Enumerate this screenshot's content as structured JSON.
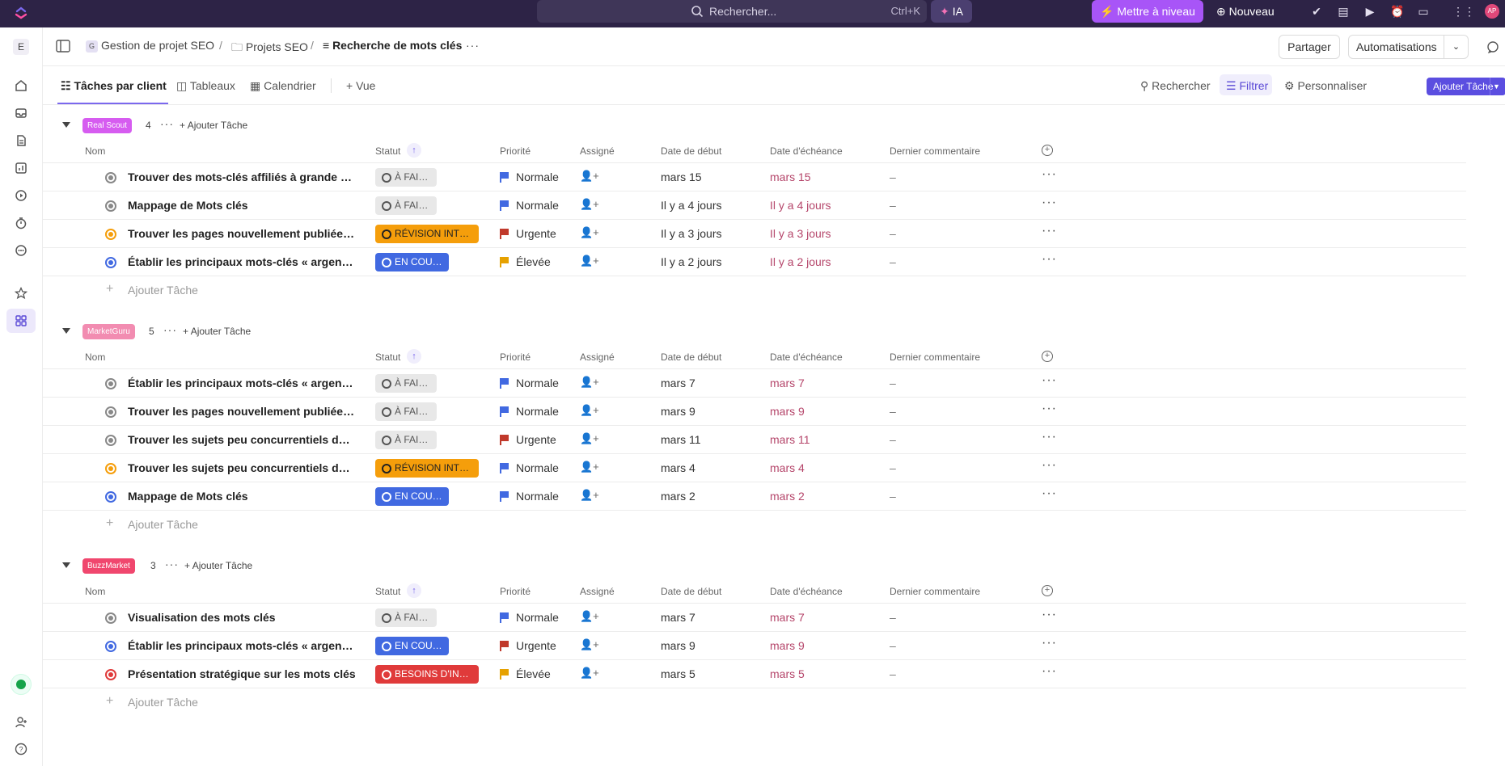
{
  "topbar": {
    "search_placeholder": "Rechercher...",
    "search_shortcut": "Ctrl+K",
    "ai_label": "IA",
    "upgrade_label": "Mettre à niveau",
    "new_label": "Nouveau",
    "avatar_initials": "AP"
  },
  "sidebar": {
    "workspace_initial": "E"
  },
  "breadcrumb": {
    "space_initial": "G",
    "space": "Gestion de projet SEO",
    "folder": "Projets SEO",
    "list": "Recherche de mots clés"
  },
  "header_actions": {
    "share": "Partager",
    "automations": "Automatisations"
  },
  "views": {
    "tabs": [
      "Tâches par client",
      "Tableaux",
      "Calendrier"
    ],
    "add_view": "+ Vue",
    "search": "Rechercher",
    "filter": "Filtrer",
    "customize": "Personnaliser",
    "add_task": "Ajouter Tâche"
  },
  "columns": {
    "name": "Nom",
    "status": "Statut",
    "priority": "Priorité",
    "assignee": "Assigné",
    "start": "Date de début",
    "due": "Date d'échéance",
    "comment": "Dernier commentaire"
  },
  "add_task_label": "Ajouter Tâche",
  "groups": [
    {
      "tag": "Real Scout",
      "color": "#d65cf0",
      "count": "4",
      "tasks": [
        {
          "name": "Trouver des mots-clés affiliés à grande échelle",
          "status": "À FAIRE",
          "status_type": "todo",
          "priority": "Normale",
          "prio_color": "#4169e1",
          "start": "mars 15",
          "due": "mars 15",
          "comment": "–"
        },
        {
          "name": "Mappage de Mots clés",
          "status": "À FAIRE",
          "status_type": "todo",
          "priority": "Normale",
          "prio_color": "#4169e1",
          "start": "Il y a 4 jours",
          "due": "Il y a 4 jours",
          "comment": "–"
        },
        {
          "name": "Trouver les pages nouvellement publiées avec des mots clés",
          "status": "RÉVISION INTERNE",
          "status_type": "review",
          "priority": "Urgente",
          "prio_color": "#c0392b",
          "start": "Il y a 3 jours",
          "due": "Il y a 3 jours",
          "comment": "–"
        },
        {
          "name": "Établir les principaux mots-clés « argent » du site",
          "status": "EN COURS",
          "status_type": "inprog",
          "priority": "Élevée",
          "prio_color": "#e6a100",
          "start": "Il y a 2 jours",
          "due": "Il y a 2 jours",
          "comment": "–"
        }
      ]
    },
    {
      "tag": "MarketGuru",
      "color": "#f28cb1",
      "count": "5",
      "tasks": [
        {
          "name": "Établir les principaux mots-clés « argent » du site",
          "status": "À FAIRE",
          "status_type": "todo",
          "priority": "Normale",
          "prio_color": "#4169e1",
          "start": "mars 7",
          "due": "mars 7",
          "comment": "–"
        },
        {
          "name": "Trouver les pages nouvellement publiées avec des mots clés",
          "status": "À FAIRE",
          "status_type": "todo",
          "priority": "Normale",
          "prio_color": "#4169e1",
          "start": "mars 9",
          "due": "mars 9",
          "comment": "–"
        },
        {
          "name": "Trouver les sujets peu concurrentiels des concurrents",
          "status": "À FAIRE",
          "status_type": "todo",
          "priority": "Urgente",
          "prio_color": "#c0392b",
          "start": "mars 11",
          "due": "mars 11",
          "comment": "–"
        },
        {
          "name": "Trouver les sujets peu concurrentiels des concurrents",
          "status": "RÉVISION INTERNE",
          "status_type": "review",
          "priority": "Normale",
          "prio_color": "#4169e1",
          "start": "mars 4",
          "due": "mars 4",
          "comment": "–"
        },
        {
          "name": "Mappage de Mots clés",
          "status": "EN COURS",
          "status_type": "inprog",
          "priority": "Normale",
          "prio_color": "#4169e1",
          "start": "mars 2",
          "due": "mars 2",
          "comment": "–"
        }
      ]
    },
    {
      "tag": "BuzzMarket",
      "color": "#f0476e",
      "count": "3",
      "tasks": [
        {
          "name": "Visualisation des mots clés",
          "status": "À FAIRE",
          "status_type": "todo",
          "priority": "Normale",
          "prio_color": "#4169e1",
          "start": "mars 7",
          "due": "mars 7",
          "comment": "–"
        },
        {
          "name": "Établir les principaux mots-clés « argent » du site",
          "status": "EN COURS",
          "status_type": "inprog",
          "priority": "Urgente",
          "prio_color": "#c0392b",
          "start": "mars 9",
          "due": "mars 9",
          "comment": "–"
        },
        {
          "name": "Présentation stratégique sur les mots clés",
          "status": "BESOINS D'INPUT",
          "status_type": "needs",
          "priority": "Élevée",
          "prio_color": "#e6a100",
          "start": "mars 5",
          "due": "mars 5",
          "comment": "–"
        }
      ]
    }
  ]
}
